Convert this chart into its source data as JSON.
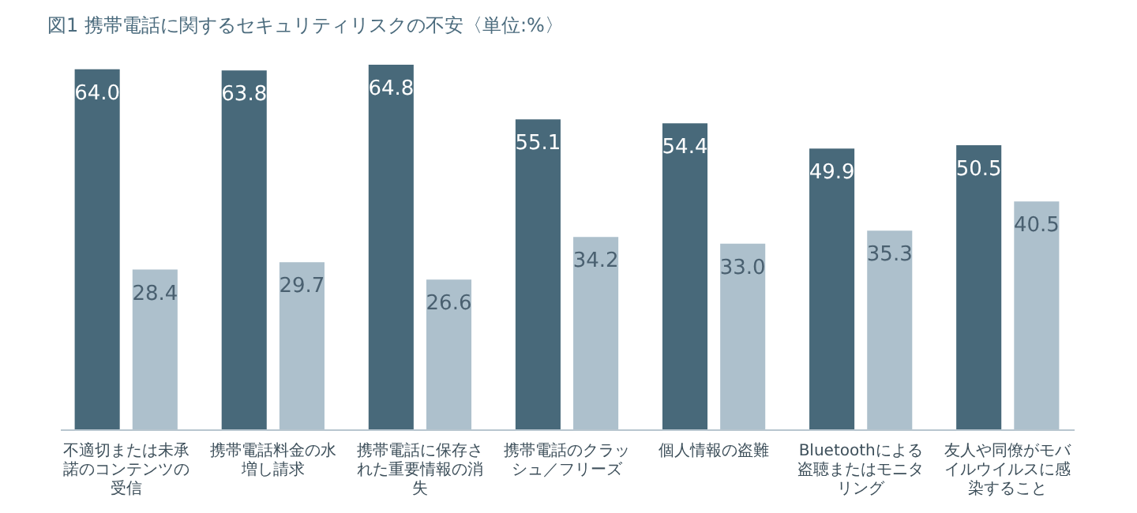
{
  "chart_data": {
    "type": "bar",
    "title": "図1 携帯電話に関するセキュリティリスクの不安〈単位:%〉",
    "categories": [
      "不適切または未承諾のコンテンツの受信",
      "携帯電話料金の水増し請求",
      "携帯電話に保存された重要情報の消失",
      "携帯電話のクラッシュ／フリーズ",
      "個人情報の盗難",
      "Bluetoothによる盗聴またはモニタリング",
      "友人や同僚がモバイルウイルスに感染すること"
    ],
    "series": [
      {
        "color": "#48697a",
        "values": [
          64.0,
          63.8,
          64.8,
          55.1,
          54.4,
          49.9,
          50.5
        ],
        "value_labels": [
          "64.0",
          "63.8",
          "64.8",
          "55.1",
          "54.4",
          "49.9",
          "50.5"
        ]
      },
      {
        "color": "#adc0cc",
        "values": [
          28.4,
          29.7,
          26.6,
          34.2,
          33.0,
          35.3,
          40.5
        ],
        "value_labels": [
          "28.4",
          "29.7",
          "26.6",
          "34.2",
          "33.0",
          "35.3",
          "40.5"
        ]
      }
    ],
    "grid": false,
    "legend": false
  }
}
